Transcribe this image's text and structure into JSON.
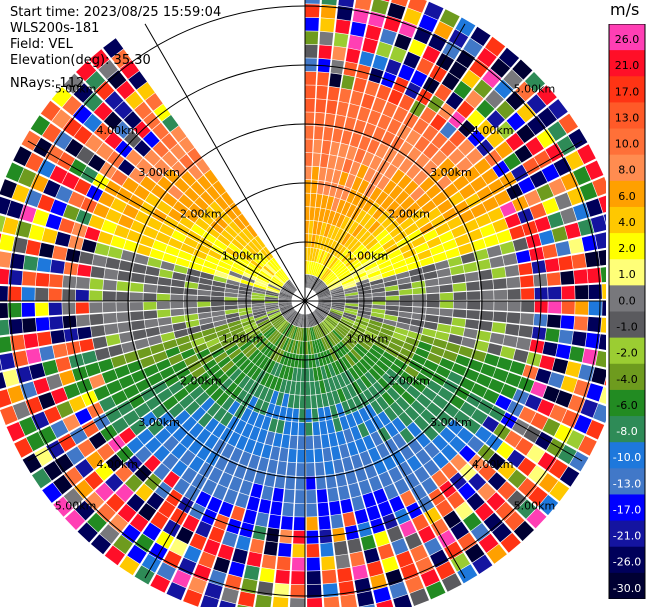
{
  "header": {
    "start_time": "Start time: 2023/08/25 15:59:04",
    "instrument": "WLS200s-181",
    "field": "Field: VEL",
    "elevation": "Elevation(deg): 35.30",
    "nrays": "NRays: 112"
  },
  "colorbar": {
    "unit": "m/s",
    "bins": [
      {
        "label": "26.0",
        "color": "#ff3fb4"
      },
      {
        "label": "21.0",
        "color": "#ff0f28"
      },
      {
        "label": "17.0",
        "color": "#ff3414"
      },
      {
        "label": "13.0",
        "color": "#ff5a28"
      },
      {
        "label": "10.0",
        "color": "#ff7038"
      },
      {
        "label": "8.0",
        "color": "#ff8c50"
      },
      {
        "label": "6.0",
        "color": "#ffa000"
      },
      {
        "label": "4.0",
        "color": "#ffc800"
      },
      {
        "label": "2.0",
        "color": "#ffff00"
      },
      {
        "label": "1.0",
        "color": "#ffff78"
      },
      {
        "label": "0.0",
        "color": "#78787c"
      },
      {
        "label": "-1.0",
        "color": "#5a5a5e"
      },
      {
        "label": "-2.0",
        "color": "#9bcd32"
      },
      {
        "label": "-4.0",
        "color": "#6e9b1e"
      },
      {
        "label": "-6.0",
        "color": "#228b22"
      },
      {
        "label": "-8.0",
        "color": "#2e8b57"
      },
      {
        "label": "-10.0",
        "color": "#1e78dc"
      },
      {
        "label": "-13.0",
        "color": "#4178c8"
      },
      {
        "label": "-17.0",
        "color": "#0000ff"
      },
      {
        "label": "-21.0",
        "color": "#1414a0"
      },
      {
        "label": "-26.0",
        "color": "#00005a"
      },
      {
        "label": "-30.0",
        "color": "#000032"
      }
    ]
  },
  "chart_data": {
    "type": "ppi",
    "field": "VEL",
    "units": "m/s",
    "elevation_deg": 35.3,
    "nrays": 112,
    "range_ring_labels": [
      "1.00km",
      "2.00km",
      "3.00km",
      "4.00km",
      "5.00km"
    ],
    "range_rings_km": [
      1,
      2,
      3,
      4,
      5
    ],
    "max_range_km": 5.5,
    "missing_sector_deg": [
      -36,
      0
    ],
    "velocity_pattern": {
      "north": "positive 8 to 13 m/s (orange/red)",
      "near_center": "0 to 2 m/s (yellow/gray)",
      "south": "negative -6 to -13 m/s (green/blue)",
      "outer_range": "noisy / random values"
    }
  }
}
